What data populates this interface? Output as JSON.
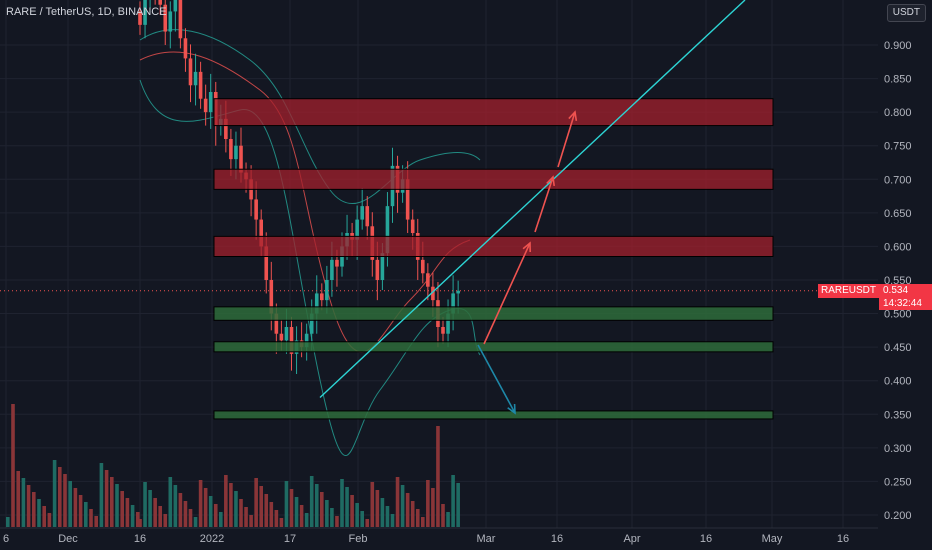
{
  "header": {
    "title": "RARE / TetherUS, 1D, BINANCE"
  },
  "price_scale": {
    "currency": "USDT",
    "ticks": [
      "0.900",
      "0.850",
      "0.800",
      "0.750",
      "0.700",
      "0.650",
      "0.600",
      "0.550",
      "0.500",
      "0.450",
      "0.400",
      "0.350",
      "0.300",
      "0.250",
      "0.200"
    ]
  },
  "time_scale": {
    "ticks": [
      "6",
      "Dec",
      "16",
      "2022",
      "17",
      "Feb",
      "Mar",
      "16",
      "Apr",
      "16",
      "May",
      "16"
    ]
  },
  "last_price": {
    "symbol": "RAREUSDT",
    "value": "0.534",
    "countdown": "14:32:44"
  },
  "colors": {
    "background": "#131722",
    "up": "#26a69a",
    "down": "#ef5350",
    "trendline": "#2dd4d4",
    "resistance_zone": "#a3202c",
    "support_zone": "#2e6b3a",
    "arrow_up": "#ef5350",
    "arrow_down": "#1e88a8"
  },
  "chart_data": {
    "type": "candlestick",
    "title": "RARE / TetherUS, 1D, BINANCE",
    "y_unit": "USDT",
    "last_price": 0.534,
    "resistance_zones": [
      [
        0.78,
        0.82
      ],
      [
        0.685,
        0.715
      ],
      [
        0.585,
        0.615
      ]
    ],
    "support_zones": [
      [
        0.49,
        0.51
      ],
      [
        0.443,
        0.458
      ],
      [
        0.347,
        0.355
      ]
    ],
    "trendline": {
      "start": [
        "2022-01-26",
        0.375
      ],
      "end": [
        "2022-05-08",
        0.99
      ]
    },
    "indicators": [
      "bollinger_bands",
      "moving_average"
    ],
    "volume": true,
    "grid": true
  }
}
